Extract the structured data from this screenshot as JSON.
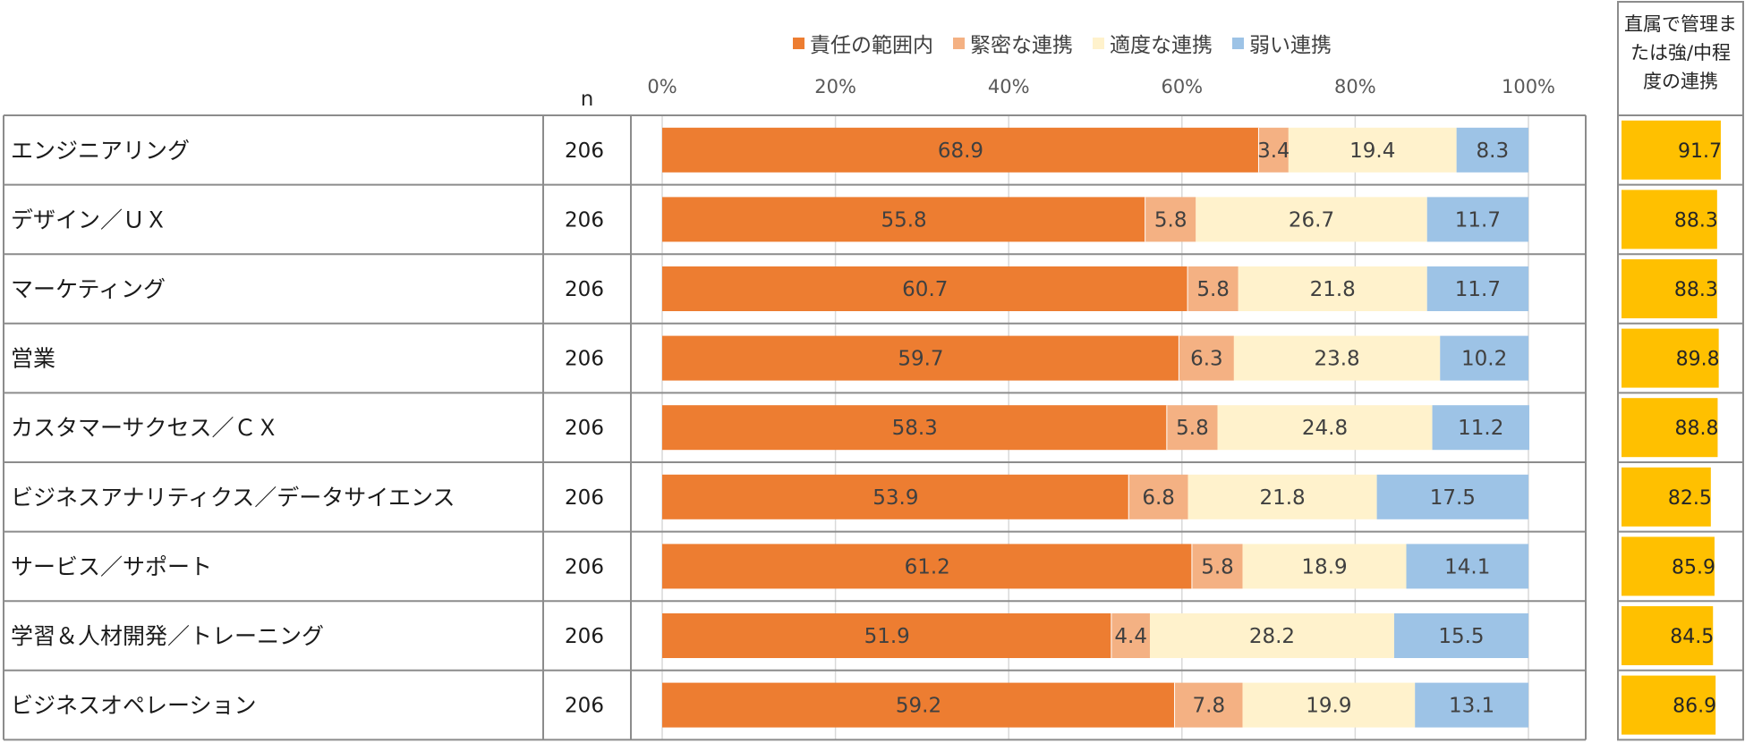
{
  "chart_data": {
    "type": "bar",
    "orientation": "horizontal",
    "stacked": true,
    "n_header": "n",
    "xlim": [
      0,
      100
    ],
    "x_ticks": [
      "0%",
      "20%",
      "40%",
      "60%",
      "80%",
      "100%"
    ],
    "grid": true,
    "legend_position": "top",
    "categories": [
      "エンジニアリング",
      "デザイン／ＵＸ",
      "マーケティング",
      "営業",
      "カスタマーサクセス／ＣＸ",
      "ビジネスアナリティクス／データサイエンス",
      "サービス／サポート",
      "学習＆人材開発／トレーニング",
      "ビジネスオペレーション"
    ],
    "n_values": [
      206,
      206,
      206,
      206,
      206,
      206,
      206,
      206,
      206
    ],
    "series": [
      {
        "name": "責任の範囲内",
        "color": "#ED7D31",
        "values": [
          68.9,
          55.8,
          60.7,
          59.7,
          58.3,
          53.9,
          61.2,
          51.9,
          59.2
        ]
      },
      {
        "name": "緊密な連携",
        "color": "#F4B183",
        "values": [
          3.4,
          5.8,
          5.8,
          6.3,
          5.8,
          6.8,
          5.8,
          4.4,
          7.8
        ]
      },
      {
        "name": "適度な連携",
        "color": "#FFF2CC",
        "values": [
          19.4,
          26.7,
          21.8,
          23.8,
          24.8,
          21.8,
          18.9,
          28.2,
          19.9
        ]
      },
      {
        "name": "弱い連携",
        "color": "#9DC3E6",
        "values": [
          8.3,
          11.7,
          11.7,
          10.2,
          11.2,
          17.5,
          14.1,
          15.5,
          13.1
        ]
      }
    ],
    "side_panel": {
      "title_lines": [
        "直属で管理ま",
        "たは強/中程",
        "度の連携"
      ],
      "color": "#FFC000",
      "xlim": [
        0,
        100
      ],
      "values": [
        91.7,
        88.3,
        88.3,
        89.8,
        88.8,
        82.5,
        85.9,
        84.5,
        86.9
      ]
    }
  }
}
